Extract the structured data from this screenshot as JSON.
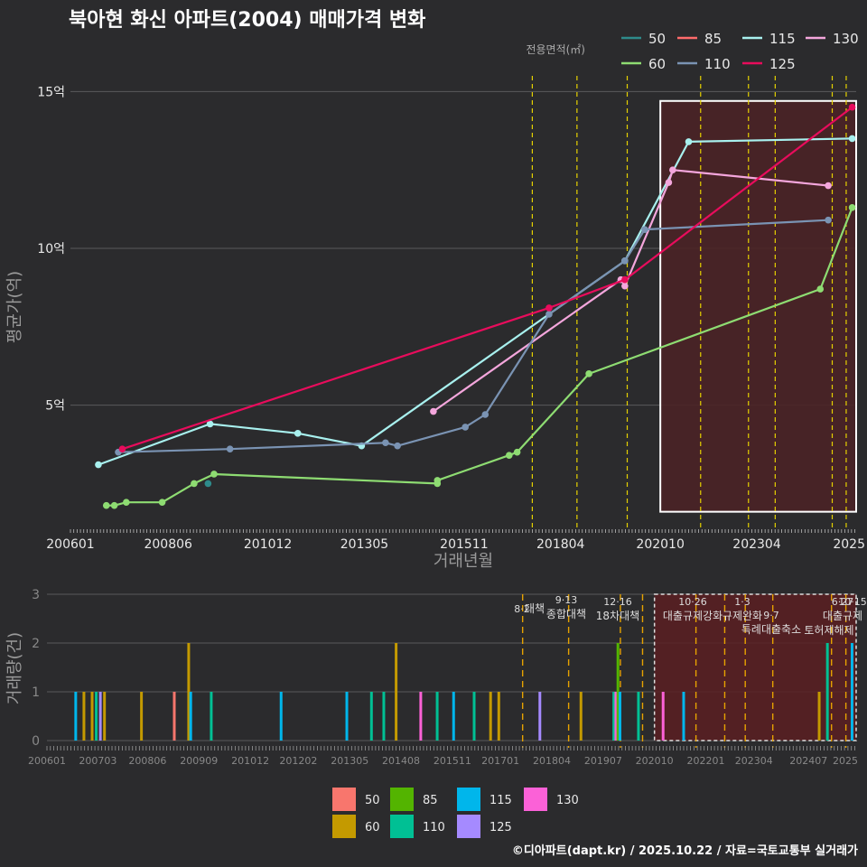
{
  "colors": {
    "background": "#2b2b2d",
    "grid": "#5a5a5c",
    "text": "#e8e8e8",
    "axis_title": "#9a9a9a",
    "policy_line": "#e6d200",
    "policy_line_bottom": "#e6a200",
    "highlight_fill": "#4a2226",
    "highlight_border": "#ffffff"
  },
  "chart_data": [
    {
      "type": "line",
      "title": "북아현 화신 아파트(2004) 매매가격 변화",
      "xlabel": "거래년월",
      "ylabel": "평균가(억)",
      "legend_title": "전용면적(㎡)",
      "legend_position": "top-right",
      "xlim": [
        2006.0,
        2025.7
      ],
      "ylim": [
        1.1,
        15.5
      ],
      "ytick_values": [
        5,
        10,
        15
      ],
      "ytick_labels": [
        "5억",
        "10억",
        "15억"
      ],
      "xtick_values": [
        2006.0,
        2008.45,
        2010.95,
        2013.37,
        2015.87,
        2018.29,
        2020.79,
        2023.21,
        2025.7
      ],
      "xtick_labels": [
        "200601",
        "200806",
        "201012",
        "201305",
        "201511",
        "201804",
        "202010",
        "202304",
        "2025"
      ],
      "policy_dates": [
        2017.58,
        2018.7,
        2019.96,
        2021.8,
        2023.0,
        2023.67,
        2025.1,
        2025.45
      ],
      "highlight_range": {
        "x": [
          2020.79,
          2025.7
        ],
        "y": [
          1.6,
          14.7
        ]
      },
      "series": [
        {
          "name": "50",
          "color": "#2e8b8b",
          "points": [
            [
              2009.45,
              2.5
            ]
          ]
        },
        {
          "name": "85",
          "color": "#ff6b6b",
          "points": [
            [
              2019.9,
              9.0
            ]
          ]
        },
        {
          "name": "115",
          "color": "#a8f0ee",
          "points": [
            [
              2006.7,
              3.1
            ],
            [
              2009.5,
              4.4
            ],
            [
              2011.7,
              4.1
            ],
            [
              2013.3,
              3.7
            ],
            [
              2019.9,
              9.6
            ],
            [
              2021.5,
              13.4
            ],
            [
              2025.6,
              13.5
            ]
          ]
        },
        {
          "name": "130",
          "color": "#f4a6dc",
          "points": [
            [
              2015.1,
              4.8
            ],
            [
              2019.8,
              9.0
            ],
            [
              2019.9,
              8.8
            ],
            [
              2021.0,
              12.1
            ],
            [
              2021.1,
              12.5
            ],
            [
              2025.0,
              12.0
            ]
          ]
        },
        {
          "name": "60",
          "color": "#8edc72",
          "points": [
            [
              2006.9,
              1.8
            ],
            [
              2007.1,
              1.8
            ],
            [
              2007.4,
              1.9
            ],
            [
              2008.3,
              1.9
            ],
            [
              2009.1,
              2.5
            ],
            [
              2009.6,
              2.8
            ],
            [
              2015.2,
              2.5
            ],
            [
              2015.2,
              2.6
            ],
            [
              2017.0,
              3.4
            ],
            [
              2017.2,
              3.5
            ],
            [
              2019.0,
              6.0
            ],
            [
              2024.8,
              8.7
            ],
            [
              2025.6,
              11.3
            ]
          ]
        },
        {
          "name": "110",
          "color": "#7a93b3",
          "points": [
            [
              2007.2,
              3.5
            ],
            [
              2010.0,
              3.6
            ],
            [
              2013.9,
              3.8
            ],
            [
              2014.2,
              3.7
            ],
            [
              2015.9,
              4.3
            ],
            [
              2016.4,
              4.7
            ],
            [
              2018.0,
              7.9
            ],
            [
              2019.9,
              9.6
            ],
            [
              2020.4,
              10.6
            ],
            [
              2025.0,
              10.9
            ]
          ]
        },
        {
          "name": "125",
          "color": "#e80c5c",
          "points": [
            [
              2007.3,
              3.6
            ],
            [
              2018.0,
              8.1
            ],
            [
              2019.9,
              9.0
            ],
            [
              2025.6,
              14.5
            ]
          ]
        }
      ]
    },
    {
      "type": "bar",
      "ylabel": "거래량(건)",
      "xlim": [
        2006.0,
        2025.7
      ],
      "ylim": [
        0,
        3
      ],
      "ytick_values": [
        0,
        1,
        2,
        3
      ],
      "xtick_values": [
        2006.0,
        2007.24,
        2008.45,
        2009.7,
        2010.95,
        2012.12,
        2013.37,
        2014.62,
        2015.87,
        2017.04,
        2018.29,
        2019.54,
        2020.79,
        2022.04,
        2023.21,
        2024.54,
        2025.7
      ],
      "xtick_labels": [
        "200601",
        "200703",
        "200806",
        "200909",
        "201012",
        "201202",
        "201305",
        "201408",
        "201511",
        "201701",
        "201804",
        "201907",
        "202010",
        "202201",
        "202304",
        "202407",
        "2025"
      ],
      "highlight_range": [
        2020.79,
        2025.7
      ],
      "policy_lines": [
        2017.58,
        2018.7,
        2019.96,
        2020.5,
        2021.8,
        2022.5,
        2023.0,
        2023.67,
        2025.1,
        2025.45
      ],
      "legend_position": "bottom-center",
      "legend": [
        {
          "name": "50",
          "color": "#f8766d"
        },
        {
          "name": "85",
          "color": "#53b400"
        },
        {
          "name": "115",
          "color": "#00b6eb"
        },
        {
          "name": "130",
          "color": "#fb61d7"
        },
        {
          "name": "60",
          "color": "#c49a00"
        },
        {
          "name": "110",
          "color": "#00c094"
        },
        {
          "name": "125",
          "color": "#a58aff"
        }
      ],
      "annotations": [
        {
          "date": "8·2",
          "label": "대책"
        },
        {
          "date": "9·13",
          "label": "종합대책"
        },
        {
          "date": "12·16",
          "label": "18차대책"
        },
        {
          "date": "10·26",
          "label": "대출규제강화"
        },
        {
          "date": "1·3",
          "label": "규제완화"
        },
        {
          "date": "9·7",
          "label": "특례대출축소"
        },
        {
          "date": "",
          "label": "토허제해제"
        },
        {
          "date": "6·27",
          "label": "대출규제"
        },
        {
          "date": "10·15",
          "label": ""
        }
      ],
      "bars": [
        {
          "x": 2006.7,
          "series": "115",
          "value": 1
        },
        {
          "x": 2006.9,
          "series": "60",
          "value": 1
        },
        {
          "x": 2007.1,
          "series": "60",
          "value": 1
        },
        {
          "x": 2007.2,
          "series": "110",
          "value": 1
        },
        {
          "x": 2007.3,
          "series": "125",
          "value": 1
        },
        {
          "x": 2007.4,
          "series": "60",
          "value": 1
        },
        {
          "x": 2008.3,
          "series": "60",
          "value": 1
        },
        {
          "x": 2009.1,
          "series": "50",
          "value": 1
        },
        {
          "x": 2009.45,
          "series": "60",
          "value": 2
        },
        {
          "x": 2009.5,
          "series": "115",
          "value": 1
        },
        {
          "x": 2010.0,
          "series": "110",
          "value": 1
        },
        {
          "x": 2011.7,
          "series": "115",
          "value": 1
        },
        {
          "x": 2013.3,
          "series": "115",
          "value": 1
        },
        {
          "x": 2013.9,
          "series": "110",
          "value": 1
        },
        {
          "x": 2014.2,
          "series": "110",
          "value": 1
        },
        {
          "x": 2014.5,
          "series": "60",
          "value": 2
        },
        {
          "x": 2015.1,
          "series": "130",
          "value": 1
        },
        {
          "x": 2015.5,
          "series": "110",
          "value": 1
        },
        {
          "x": 2015.9,
          "series": "115",
          "value": 1
        },
        {
          "x": 2016.4,
          "series": "110",
          "value": 1
        },
        {
          "x": 2016.8,
          "series": "60",
          "value": 1
        },
        {
          "x": 2017.0,
          "series": "60",
          "value": 1
        },
        {
          "x": 2018.0,
          "series": "125",
          "value": 1
        },
        {
          "x": 2019.0,
          "series": "60",
          "value": 1
        },
        {
          "x": 2019.8,
          "series": "110",
          "value": 1
        },
        {
          "x": 2019.85,
          "series": "130",
          "value": 1
        },
        {
          "x": 2019.9,
          "series": "85",
          "value": 2
        },
        {
          "x": 2019.95,
          "series": "115",
          "value": 1
        },
        {
          "x": 2020.4,
          "series": "110",
          "value": 1
        },
        {
          "x": 2021.0,
          "series": "130",
          "value": 1
        },
        {
          "x": 2021.5,
          "series": "115",
          "value": 1
        },
        {
          "x": 2024.8,
          "series": "60",
          "value": 1
        },
        {
          "x": 2025.0,
          "series": "110",
          "value": 2
        },
        {
          "x": 2025.6,
          "series": "115",
          "value": 2
        }
      ]
    }
  ],
  "footer": "©디아파트(dapt.kr) / 2025.10.22 / 자료=국토교통부 실거래가"
}
